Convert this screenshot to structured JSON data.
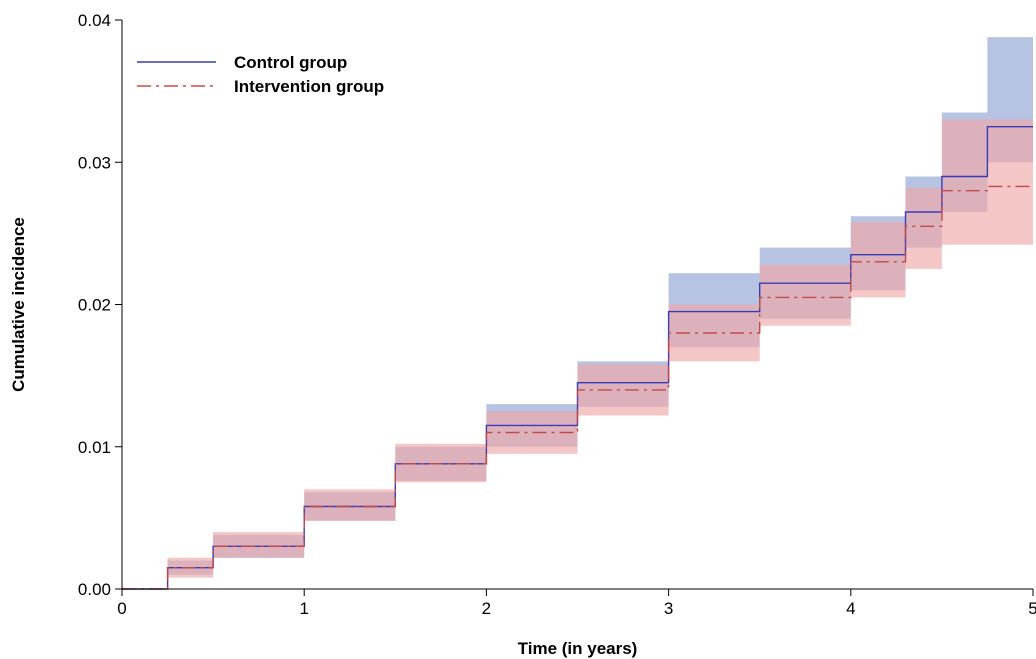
{
  "chart_data": {
    "type": "line",
    "title": "",
    "xlabel": "Time (in years)",
    "ylabel": "Cumulative incidence",
    "xlim": [
      0,
      5
    ],
    "ylim": [
      0,
      0.04
    ],
    "x_ticks": [
      0,
      1,
      2,
      3,
      4,
      5
    ],
    "x_tick_labels": [
      "0",
      "1",
      "2",
      "3",
      "4",
      "5"
    ],
    "y_ticks": [
      0,
      0.01,
      0.02,
      0.03,
      0.04
    ],
    "y_tick_labels": [
      "0.00",
      "0.01",
      "0.02",
      "0.03",
      "0.04"
    ],
    "grid": false,
    "legend_position": "top-left",
    "series": [
      {
        "name": "Control group",
        "line_style": "solid",
        "color": "#3a3ab8",
        "band_color": "#aab8dd",
        "x": [
          0,
          0.25,
          0.5,
          1.0,
          1.5,
          2.0,
          2.5,
          3.0,
          3.5,
          4.0,
          4.3,
          4.5,
          4.75,
          5.0
        ],
        "y": [
          0,
          0.0015,
          0.003,
          0.0058,
          0.0088,
          0.0115,
          0.0145,
          0.0195,
          0.0215,
          0.0235,
          0.0265,
          0.029,
          0.0325,
          0.0325
        ],
        "lower": [
          0,
          0.001,
          0.0022,
          0.0048,
          0.0076,
          0.01,
          0.0128,
          0.017,
          0.019,
          0.021,
          0.024,
          0.0265,
          0.03,
          0.03
        ],
        "upper": [
          0,
          0.002,
          0.0038,
          0.0068,
          0.01,
          0.013,
          0.016,
          0.0222,
          0.024,
          0.0262,
          0.029,
          0.0335,
          0.0388,
          0.0388
        ]
      },
      {
        "name": "Intervention group",
        "line_style": "dash-dot",
        "color": "#c04a4a",
        "band_color": "#f0a8a8",
        "x": [
          0,
          0.25,
          0.5,
          1.0,
          1.5,
          2.0,
          2.5,
          3.0,
          3.5,
          4.0,
          4.3,
          4.5,
          4.75,
          5.0
        ],
        "y": [
          0,
          0.0015,
          0.003,
          0.0058,
          0.0088,
          0.011,
          0.014,
          0.018,
          0.0205,
          0.023,
          0.0255,
          0.028,
          0.0283,
          0.0283
        ],
        "lower": [
          0,
          0.0008,
          0.0022,
          0.0048,
          0.0075,
          0.0095,
          0.0122,
          0.016,
          0.0185,
          0.0205,
          0.0225,
          0.0242,
          0.0242,
          0.0242
        ],
        "upper": [
          0,
          0.0022,
          0.004,
          0.007,
          0.0102,
          0.0125,
          0.0158,
          0.02,
          0.0228,
          0.0258,
          0.0282,
          0.033,
          0.033,
          0.033
        ]
      }
    ]
  }
}
